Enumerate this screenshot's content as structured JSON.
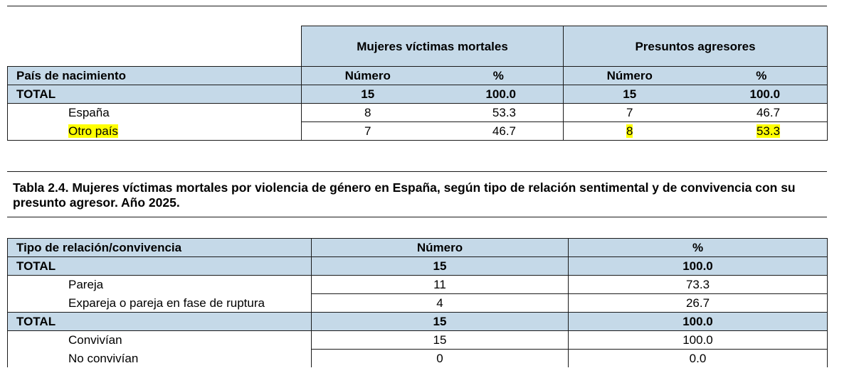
{
  "table1": {
    "group1_header": "Mujeres víctimas mortales",
    "group2_header": "Presuntos agresores",
    "row_header": "País de nacimiento",
    "col_numero": "Número",
    "col_pct": "%",
    "rows": [
      {
        "label": "TOTAL",
        "v_num": "15",
        "v_pct": "100.0",
        "a_num": "15",
        "a_pct": "100.0"
      },
      {
        "label": "España",
        "v_num": "8",
        "v_pct": "53.3",
        "a_num": "7",
        "a_pct": "46.7"
      },
      {
        "label": "Otro país",
        "v_num": "7",
        "v_pct": "46.7",
        "a_num": "8",
        "a_pct": "53.3"
      }
    ]
  },
  "table2": {
    "title": "Tabla 2.4. Mujeres víctimas mortales por violencia de género en España, según tipo de relación sentimental y de convivencia con su presunto agresor.   Año 2025.",
    "col_label": "Tipo de relación/convivencia",
    "col_numero": "Número",
    "col_pct": "%",
    "rows": [
      {
        "label": "TOTAL",
        "num": "15",
        "pct": "100.0"
      },
      {
        "label": "Pareja",
        "num": "11",
        "pct": "73.3"
      },
      {
        "label": "Expareja o pareja en fase de ruptura",
        "num": "4",
        "pct": "26.7"
      },
      {
        "label": "TOTAL",
        "num": "15",
        "pct": "100.0"
      },
      {
        "label": "Convivían",
        "num": "15",
        "pct": "100.0"
      },
      {
        "label": "No convivían",
        "num": "0",
        "pct": "0.0"
      }
    ]
  },
  "colors": {
    "header_bg": "#c5d9e8",
    "highlight": "#ffff00"
  }
}
